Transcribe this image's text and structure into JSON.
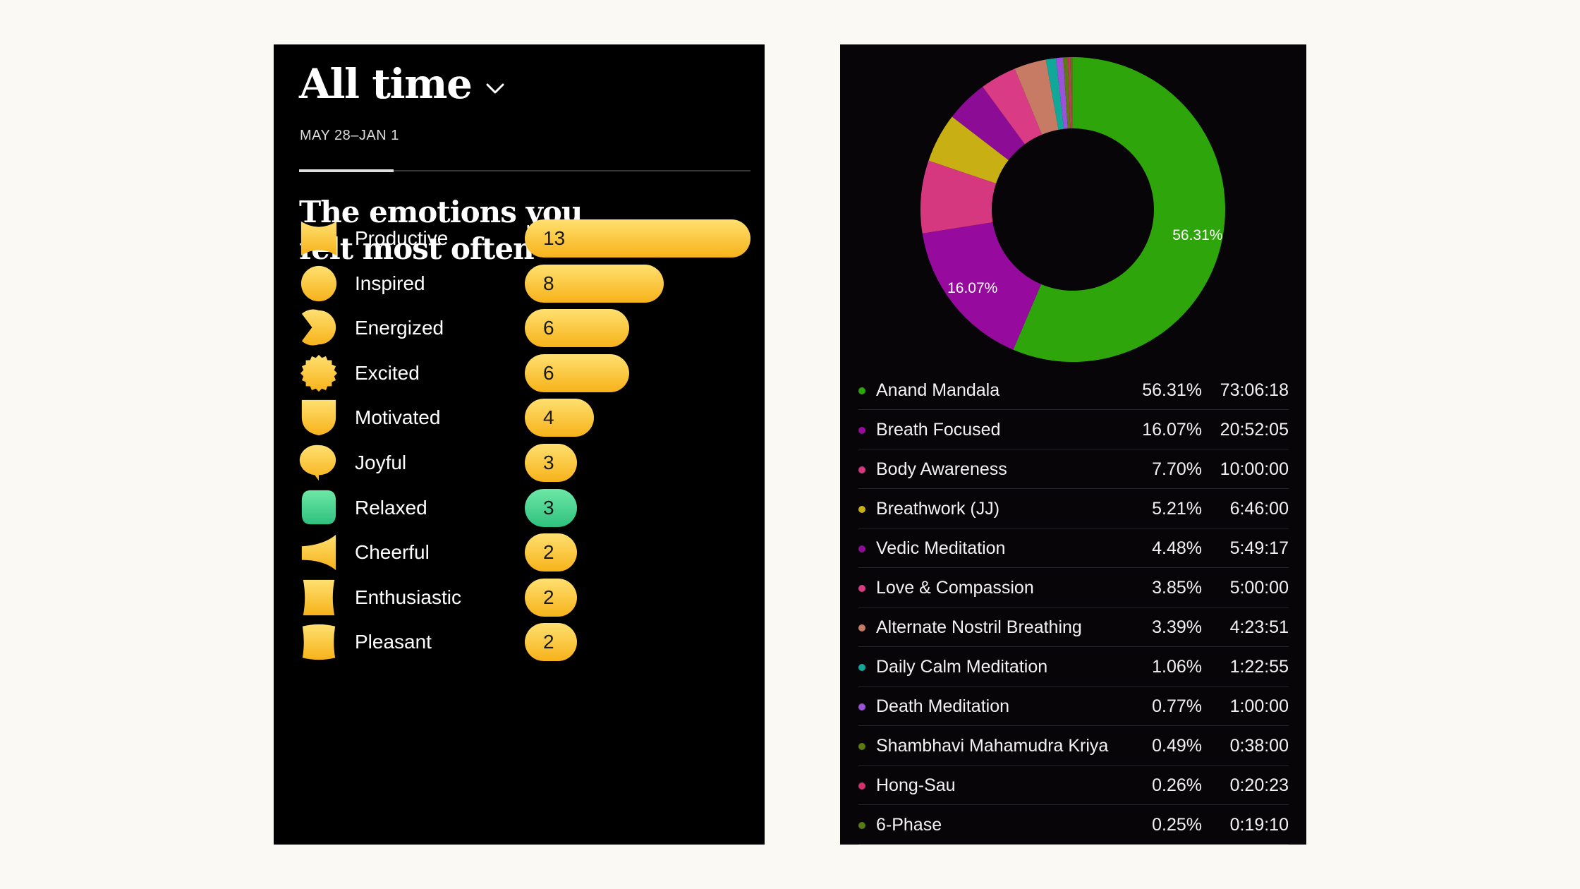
{
  "emotions_panel": {
    "title": "All time",
    "date_range": "MAY 28–JAN 1",
    "heading_line1": "The emotions you",
    "heading_line2": "felt most often",
    "items": [
      {
        "label": "Productive",
        "count": "13",
        "value": 13,
        "shape": "bowtie",
        "color": "yellow"
      },
      {
        "label": "Inspired",
        "count": "8",
        "value": 8,
        "shape": "circle",
        "color": "yellow"
      },
      {
        "label": "Energized",
        "count": "6",
        "value": 6,
        "shape": "pac",
        "color": "yellow"
      },
      {
        "label": "Excited",
        "count": "6",
        "value": 6,
        "shape": "sun",
        "color": "yellow"
      },
      {
        "label": "Motivated",
        "count": "4",
        "value": 4,
        "shape": "shield",
        "color": "yellow"
      },
      {
        "label": "Joyful",
        "count": "3",
        "value": 3,
        "shape": "bubble",
        "color": "yellow"
      },
      {
        "label": "Relaxed",
        "count": "3",
        "value": 3,
        "shape": "squircle",
        "color": "green"
      },
      {
        "label": "Cheerful",
        "count": "2",
        "value": 2,
        "shape": "horn",
        "color": "yellow"
      },
      {
        "label": "Enthusiastic",
        "count": "2",
        "value": 2,
        "shape": "notch",
        "color": "yellow"
      },
      {
        "label": "Pleasant",
        "count": "2",
        "value": 2,
        "shape": "pillow",
        "color": "yellow"
      }
    ],
    "colors": {
      "yellow_top": "#ffe070",
      "yellow_bottom": "#f7b21a",
      "green_top": "#6ee8a6",
      "green_bottom": "#2fc07e"
    }
  },
  "chart_data": {
    "type": "pie",
    "donut": true,
    "labels": [
      "56.31%",
      "16.07%"
    ],
    "segments": [
      {
        "name": "Anand Mandala",
        "pct": "56.31%",
        "time": "73:06:18",
        "value": 56.31,
        "color": "#2ea60b"
      },
      {
        "name": "Breath Focused",
        "pct": "16.07%",
        "time": "20:52:05",
        "value": 16.07,
        "color": "#960a9e"
      },
      {
        "name": "Body Awareness",
        "pct": "7.70%",
        "time": "10:00:00",
        "value": 7.7,
        "color": "#d6387f"
      },
      {
        "name": "Breathwork (JJ)",
        "pct": "5.21%",
        "time": "6:46:00",
        "value": 5.21,
        "color": "#c8b014"
      },
      {
        "name": "Vedic Meditation",
        "pct": "4.48%",
        "time": "5:49:17",
        "value": 4.48,
        "color": "#8c0c96"
      },
      {
        "name": "Love & Compassion",
        "pct": "3.85%",
        "time": "5:00:00",
        "value": 3.85,
        "color": "#d93c84"
      },
      {
        "name": "Alternate Nostril Breathing",
        "pct": "3.39%",
        "time": "4:23:51",
        "value": 3.39,
        "color": "#c77a64"
      },
      {
        "name": "Daily Calm Meditation",
        "pct": "1.06%",
        "time": "1:22:55",
        "value": 1.06,
        "color": "#11a89a"
      },
      {
        "name": "Death Meditation",
        "pct": "0.77%",
        "time": "1:00:00",
        "value": 0.77,
        "color": "#9a52d8"
      },
      {
        "name": "Shambhavi Mahamudra Kriya",
        "pct": "0.49%",
        "time": "0:38:00",
        "value": 0.49,
        "color": "#5c7a10"
      },
      {
        "name": "Hong-Sau",
        "pct": "0.26%",
        "time": "0:20:23",
        "value": 0.26,
        "color": "#d4306e"
      },
      {
        "name": "6-Phase",
        "pct": "0.25%",
        "time": "0:19:10",
        "value": 0.25,
        "color": "#567a14"
      }
    ]
  }
}
